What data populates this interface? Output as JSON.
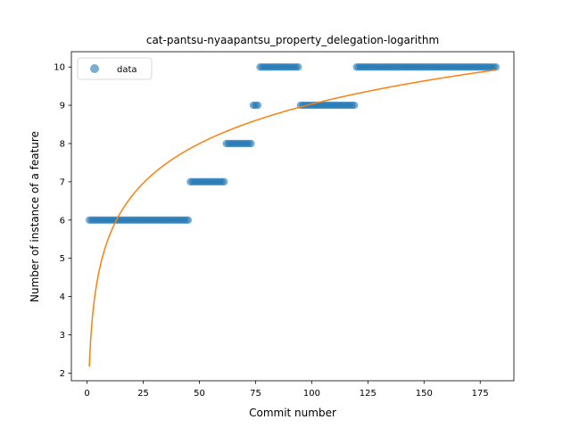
{
  "chart_data": {
    "type": "scatter",
    "title": "cat-pantsu-nyaapantsu_property_delegation-logarithm",
    "xlabel": "Commit number",
    "ylabel": "Number of instance of a feature",
    "xlim": [
      -7,
      190
    ],
    "ylim": [
      1.8,
      10.4
    ],
    "xticks": [
      0,
      25,
      50,
      75,
      100,
      125,
      150,
      175
    ],
    "yticks": [
      2,
      3,
      4,
      5,
      6,
      7,
      8,
      9,
      10
    ],
    "grid": false,
    "legend": {
      "placement": "top-left",
      "entries": [
        "data"
      ]
    },
    "colors": {
      "data": "#1f77b4",
      "fit": "#ff7f0e"
    },
    "series": [
      {
        "name": "data",
        "kind": "scatter",
        "segments": [
          {
            "x_start": 1,
            "x_end": 45,
            "y": 6
          },
          {
            "x_start": 46,
            "x_end": 61,
            "y": 7
          },
          {
            "x_start": 62,
            "x_end": 73,
            "y": 8
          },
          {
            "x_start": 74,
            "x_end": 76,
            "y": 9
          },
          {
            "x_start": 77,
            "x_end": 94,
            "y": 10
          },
          {
            "x_start": 95,
            "x_end": 119,
            "y": 9
          },
          {
            "x_start": 120,
            "x_end": 182,
            "y": 10
          }
        ]
      },
      {
        "kind": "line",
        "model": "logarithmic",
        "equation": {
          "a": 2.17,
          "b": 1.49
        },
        "x_range": [
          1,
          182
        ]
      }
    ]
  }
}
